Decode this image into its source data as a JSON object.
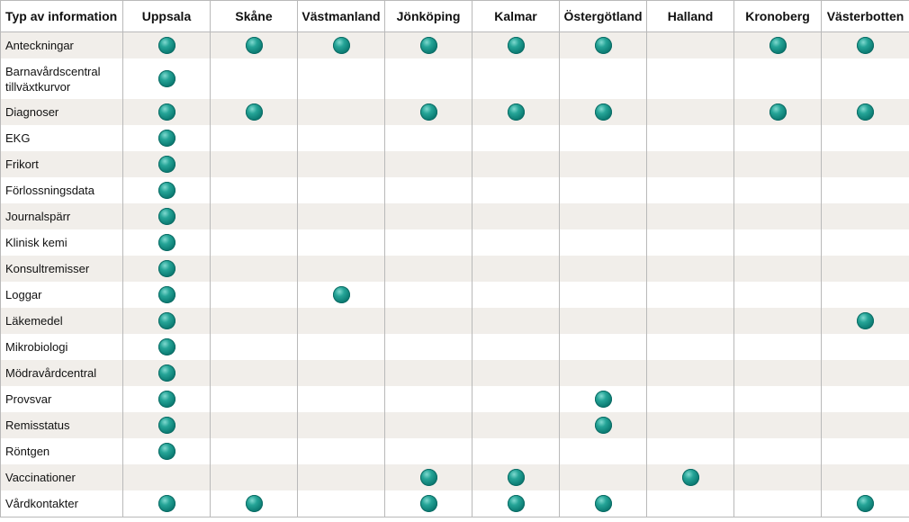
{
  "table": {
    "corner_header": "Typ av information",
    "regions": [
      "Uppsala",
      "Skåne",
      "Västmanland",
      "Jönköping",
      "Kalmar",
      "Östergötland",
      "Halland",
      "Kronoberg",
      "Västerbotten"
    ],
    "rows": [
      {
        "label": "Anteckningar",
        "available": [
          true,
          true,
          true,
          true,
          true,
          true,
          false,
          true,
          true
        ]
      },
      {
        "label": "Barnavårdscentral tillväxtkurvor",
        "available": [
          true,
          false,
          false,
          false,
          false,
          false,
          false,
          false,
          false
        ]
      },
      {
        "label": "Diagnoser",
        "available": [
          true,
          true,
          false,
          true,
          true,
          true,
          false,
          true,
          true
        ]
      },
      {
        "label": "EKG",
        "available": [
          true,
          false,
          false,
          false,
          false,
          false,
          false,
          false,
          false
        ]
      },
      {
        "label": "Frikort",
        "available": [
          true,
          false,
          false,
          false,
          false,
          false,
          false,
          false,
          false
        ]
      },
      {
        "label": "Förlossningsdata",
        "available": [
          true,
          false,
          false,
          false,
          false,
          false,
          false,
          false,
          false
        ]
      },
      {
        "label": "Journalspärr",
        "available": [
          true,
          false,
          false,
          false,
          false,
          false,
          false,
          false,
          false
        ]
      },
      {
        "label": "Klinisk kemi",
        "available": [
          true,
          false,
          false,
          false,
          false,
          false,
          false,
          false,
          false
        ]
      },
      {
        "label": "Konsultremisser",
        "available": [
          true,
          false,
          false,
          false,
          false,
          false,
          false,
          false,
          false
        ]
      },
      {
        "label": "Loggar",
        "available": [
          true,
          false,
          true,
          false,
          false,
          false,
          false,
          false,
          false
        ]
      },
      {
        "label": "Läkemedel",
        "available": [
          true,
          false,
          false,
          false,
          false,
          false,
          false,
          false,
          true
        ]
      },
      {
        "label": "Mikrobiologi",
        "available": [
          true,
          false,
          false,
          false,
          false,
          false,
          false,
          false,
          false
        ]
      },
      {
        "label": "Mödravårdcentral",
        "available": [
          true,
          false,
          false,
          false,
          false,
          false,
          false,
          false,
          false
        ]
      },
      {
        "label": "Provsvar",
        "available": [
          true,
          false,
          false,
          false,
          false,
          true,
          false,
          false,
          false
        ]
      },
      {
        "label": "Remisstatus",
        "available": [
          true,
          false,
          false,
          false,
          false,
          true,
          false,
          false,
          false
        ]
      },
      {
        "label": "Röntgen",
        "available": [
          true,
          false,
          false,
          false,
          false,
          false,
          false,
          false,
          false
        ]
      },
      {
        "label": "Vaccinationer",
        "available": [
          false,
          false,
          false,
          true,
          true,
          false,
          true,
          false,
          false
        ]
      },
      {
        "label": "Vårdkontakter",
        "available": [
          true,
          true,
          false,
          true,
          true,
          true,
          false,
          false,
          true
        ]
      }
    ]
  },
  "colors": {
    "dot": "#13877d",
    "row_shade": "#f1eeea",
    "grid_line": "#b9b9b9"
  },
  "icons": {
    "marker": "teal-sphere-dot-icon"
  }
}
